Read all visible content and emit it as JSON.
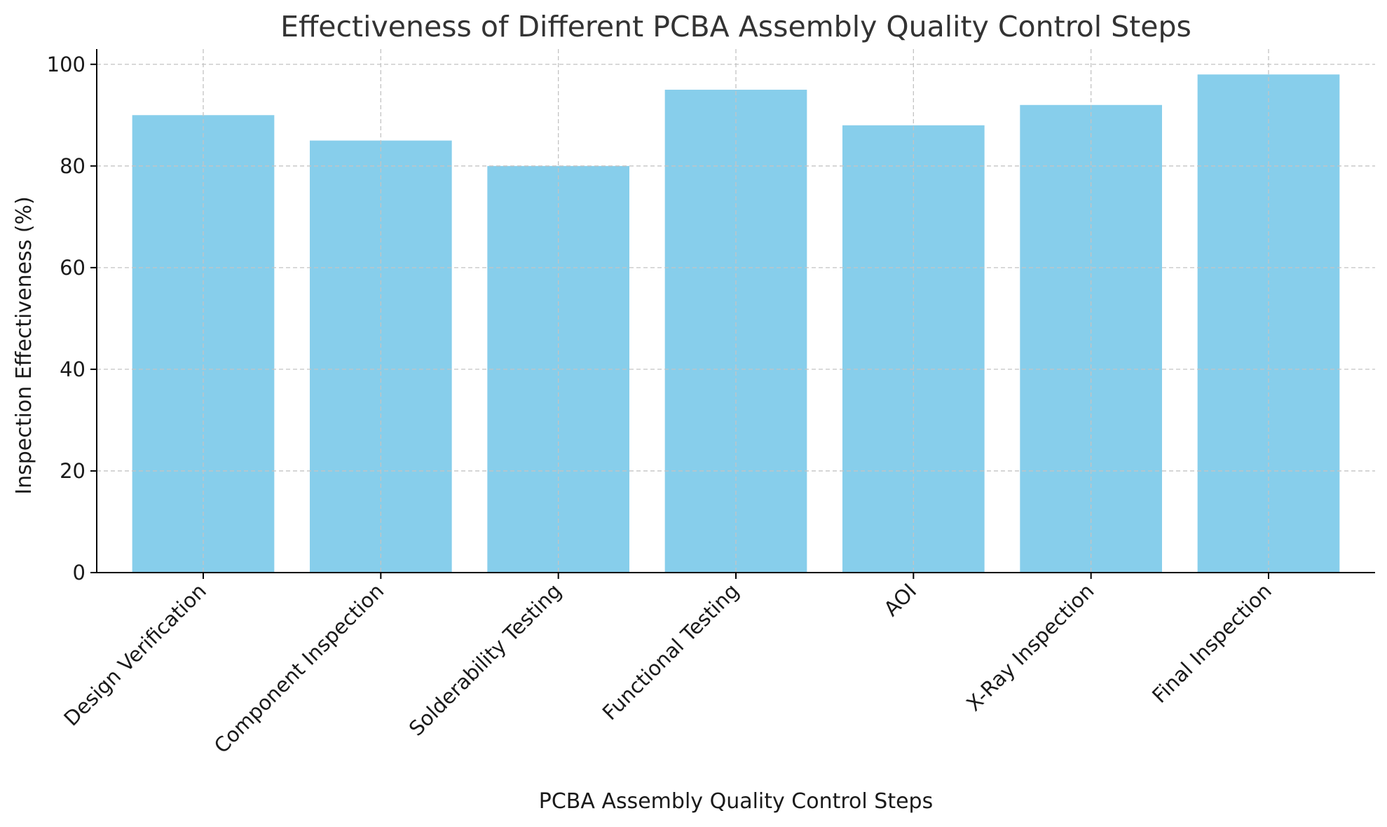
{
  "chart_data": {
    "type": "bar",
    "title": "Effectiveness of Different PCBA Assembly Quality Control Steps",
    "xlabel": "PCBA Assembly Quality Control Steps",
    "ylabel": "Inspection Effectiveness (%)",
    "categories": [
      "Design Verification",
      "Component Inspection",
      "Solderability Testing",
      "Functional Testing",
      "AOI",
      "X-Ray Inspection",
      "Final Inspection"
    ],
    "values": [
      90,
      85,
      80,
      95,
      88,
      92,
      98
    ],
    "ylim": [
      0,
      103
    ],
    "yticks": [
      0,
      20,
      40,
      60,
      80,
      100
    ],
    "grid": true,
    "bar_color": "#87CEEB"
  }
}
